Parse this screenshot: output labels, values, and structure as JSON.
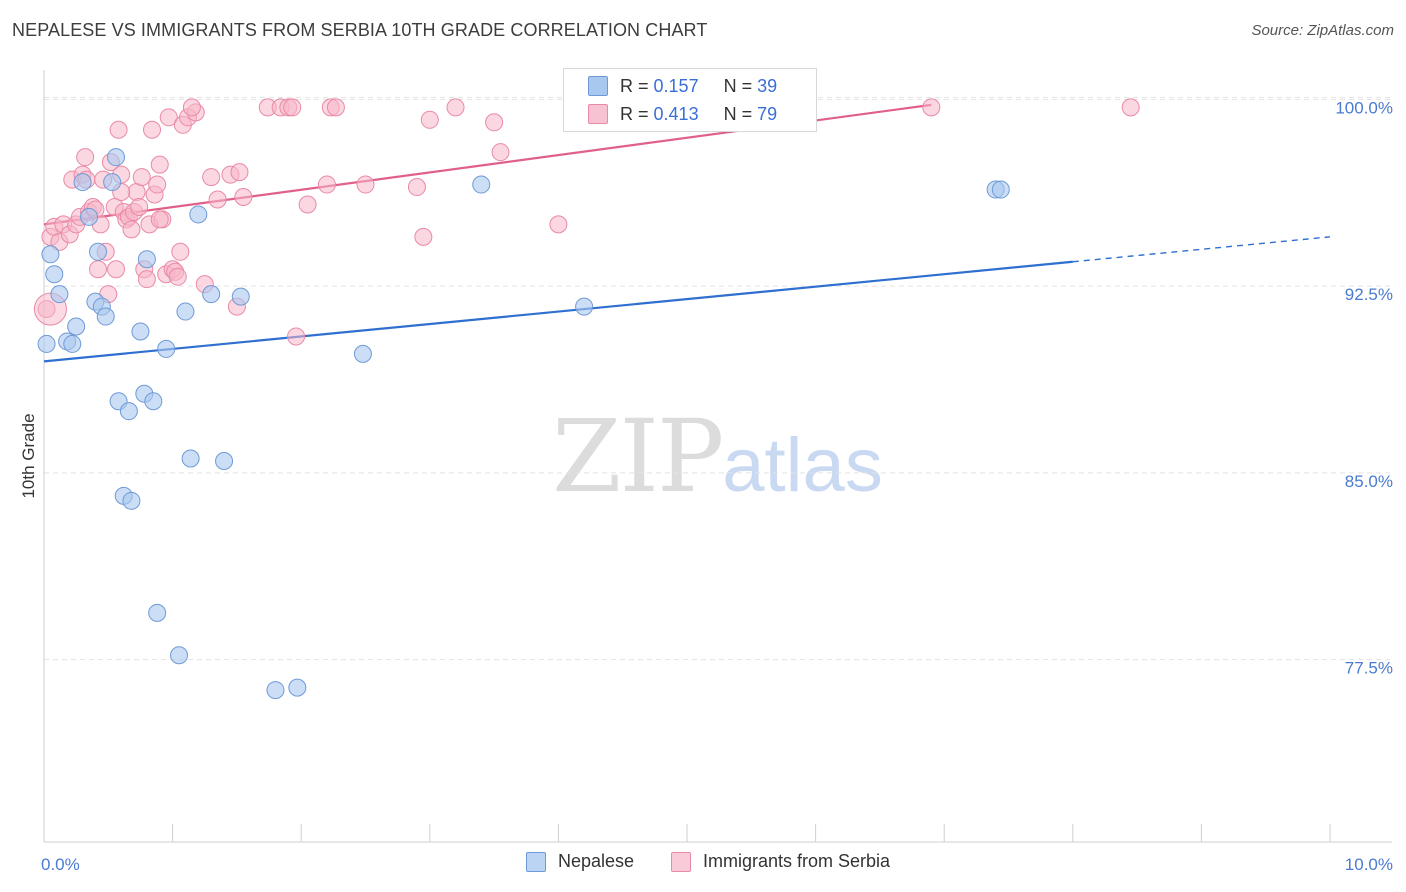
{
  "header": {
    "title": "NEPALESE VS IMMIGRANTS FROM SERBIA 10TH GRADE CORRELATION CHART",
    "source": "Source: ZipAtlas.com"
  },
  "legend": {
    "series": [
      {
        "r_label": "R =",
        "r_value": "0.157",
        "n_label": "N =",
        "n_value": "39"
      },
      {
        "r_label": "R =",
        "r_value": "0.413",
        "n_label": "N =",
        "n_value": "79"
      }
    ]
  },
  "bottom_legend": {
    "nepalese": "Nepalese",
    "serbia": "Immigrants from Serbia"
  },
  "watermark": {
    "zip": "ZIP",
    "atlas": "atlas"
  },
  "colors": {
    "nepalese_fill": "#a9c8f0",
    "nepalese_stroke": "#6f9ad6",
    "nepalese_line": "#2f6fd0",
    "serbia_fill": "#f7b6c8",
    "serbia_stroke": "#e98aa6",
    "serbia_line": "#e0608b",
    "axis_text": "#4a7bd0",
    "grid": "#e3e3e3"
  },
  "chart_data": {
    "type": "scatter",
    "title": "NEPALESE VS IMMIGRANTS FROM SERBIA 10TH GRADE CORRELATION CHART",
    "xlabel": "",
    "ylabel": "10th Grade",
    "xlim": [
      0.0,
      10.0
    ],
    "ylim": [
      70.5,
      101.5
    ],
    "x_tick_labels": [
      {
        "value": 0.0,
        "label": "0.0%"
      },
      {
        "value": 10.0,
        "label": "10.0%"
      }
    ],
    "y_ticks": [
      {
        "value": 100.0,
        "label": "100.0%"
      },
      {
        "value": 92.5,
        "label": "92.5%"
      },
      {
        "value": 85.0,
        "label": "85.0%"
      },
      {
        "value": 77.5,
        "label": "77.5%"
      }
    ],
    "series": [
      {
        "name": "Nepalese",
        "r": 0.157,
        "n": 39,
        "trend": {
          "x0": 0.0,
          "y0": 89.8,
          "x1": 8.0,
          "y1": 93.8,
          "dash_to_x": 10.0,
          "dash_to_y": 94.8
        },
        "points": [
          [
            0.02,
            90.5
          ],
          [
            0.05,
            94.1
          ],
          [
            0.08,
            93.3
          ],
          [
            0.12,
            92.5
          ],
          [
            0.18,
            90.6
          ],
          [
            0.22,
            90.5
          ],
          [
            0.25,
            91.2
          ],
          [
            0.3,
            97.0
          ],
          [
            0.35,
            95.6
          ],
          [
            0.4,
            92.2
          ],
          [
            0.42,
            94.2
          ],
          [
            0.45,
            92.0
          ],
          [
            0.48,
            91.6
          ],
          [
            0.53,
            97.0
          ],
          [
            0.56,
            98.0
          ],
          [
            0.58,
            88.2
          ],
          [
            0.62,
            84.4
          ],
          [
            0.66,
            87.8
          ],
          [
            0.68,
            84.2
          ],
          [
            0.75,
            91.0
          ],
          [
            0.78,
            88.5
          ],
          [
            0.8,
            93.9
          ],
          [
            0.85,
            88.2
          ],
          [
            0.88,
            79.7
          ],
          [
            0.95,
            90.3
          ],
          [
            1.05,
            78.0
          ],
          [
            1.1,
            91.8
          ],
          [
            1.14,
            85.9
          ],
          [
            1.2,
            95.7
          ],
          [
            1.3,
            92.5
          ],
          [
            1.4,
            85.8
          ],
          [
            1.53,
            92.4
          ],
          [
            1.8,
            76.6
          ],
          [
            1.97,
            76.7
          ],
          [
            2.48,
            90.1
          ],
          [
            3.4,
            96.9
          ],
          [
            4.2,
            92.0
          ],
          [
            7.4,
            96.7
          ],
          [
            7.44,
            96.7
          ]
        ]
      },
      {
        "name": "Immigrants from Serbia",
        "r": 0.413,
        "n": 79,
        "trend": {
          "x0": 0.0,
          "y0": 95.3,
          "x1": 6.9,
          "y1": 100.1
        },
        "points": [
          [
            0.02,
            91.9
          ],
          [
            0.05,
            94.8
          ],
          [
            0.08,
            95.2
          ],
          [
            0.12,
            94.6
          ],
          [
            0.15,
            95.3
          ],
          [
            0.2,
            94.9
          ],
          [
            0.22,
            97.1
          ],
          [
            0.25,
            95.3
          ],
          [
            0.28,
            95.6
          ],
          [
            0.3,
            97.3
          ],
          [
            0.33,
            97.1
          ],
          [
            0.35,
            95.8
          ],
          [
            0.38,
            96.0
          ],
          [
            0.4,
            95.9
          ],
          [
            0.42,
            93.5
          ],
          [
            0.44,
            95.3
          ],
          [
            0.46,
            97.1
          ],
          [
            0.48,
            94.2
          ],
          [
            0.5,
            92.5
          ],
          [
            0.52,
            97.8
          ],
          [
            0.55,
            96.0
          ],
          [
            0.56,
            93.5
          ],
          [
            0.58,
            99.1
          ],
          [
            0.6,
            97.3
          ],
          [
            0.62,
            95.8
          ],
          [
            0.64,
            95.5
          ],
          [
            0.66,
            95.6
          ],
          [
            0.68,
            95.1
          ],
          [
            0.7,
            95.8
          ],
          [
            0.72,
            96.6
          ],
          [
            0.74,
            96.0
          ],
          [
            0.76,
            97.2
          ],
          [
            0.78,
            93.5
          ],
          [
            0.8,
            93.1
          ],
          [
            0.82,
            95.3
          ],
          [
            0.84,
            99.1
          ],
          [
            0.86,
            96.5
          ],
          [
            0.88,
            96.9
          ],
          [
            0.9,
            97.7
          ],
          [
            0.92,
            95.5
          ],
          [
            0.95,
            93.3
          ],
          [
            0.97,
            99.6
          ],
          [
            1.0,
            93.5
          ],
          [
            1.02,
            93.4
          ],
          [
            1.04,
            93.2
          ],
          [
            1.06,
            94.2
          ],
          [
            1.08,
            99.3
          ],
          [
            1.12,
            99.6
          ],
          [
            1.18,
            99.8
          ],
          [
            1.25,
            92.9
          ],
          [
            1.3,
            97.2
          ],
          [
            1.35,
            96.3
          ],
          [
            1.45,
            97.3
          ],
          [
            1.5,
            92.0
          ],
          [
            1.52,
            97.4
          ],
          [
            1.55,
            96.4
          ],
          [
            1.74,
            100.0
          ],
          [
            1.84,
            100.0
          ],
          [
            1.9,
            100.0
          ],
          [
            1.93,
            100.0
          ],
          [
            1.96,
            90.8
          ],
          [
            2.05,
            96.1
          ],
          [
            2.2,
            96.9
          ],
          [
            2.23,
            100.0
          ],
          [
            2.27,
            100.0
          ],
          [
            2.5,
            96.9
          ],
          [
            2.9,
            96.8
          ],
          [
            2.95,
            94.8
          ],
          [
            3.0,
            99.5
          ],
          [
            3.2,
            100.0
          ],
          [
            3.5,
            99.4
          ],
          [
            3.55,
            98.2
          ],
          [
            4.0,
            95.3
          ],
          [
            6.9,
            100.0
          ],
          [
            8.45,
            100.0
          ],
          [
            0.32,
            98.0
          ],
          [
            0.6,
            96.6
          ],
          [
            0.9,
            95.5
          ],
          [
            1.15,
            100.0
          ]
        ]
      }
    ]
  }
}
